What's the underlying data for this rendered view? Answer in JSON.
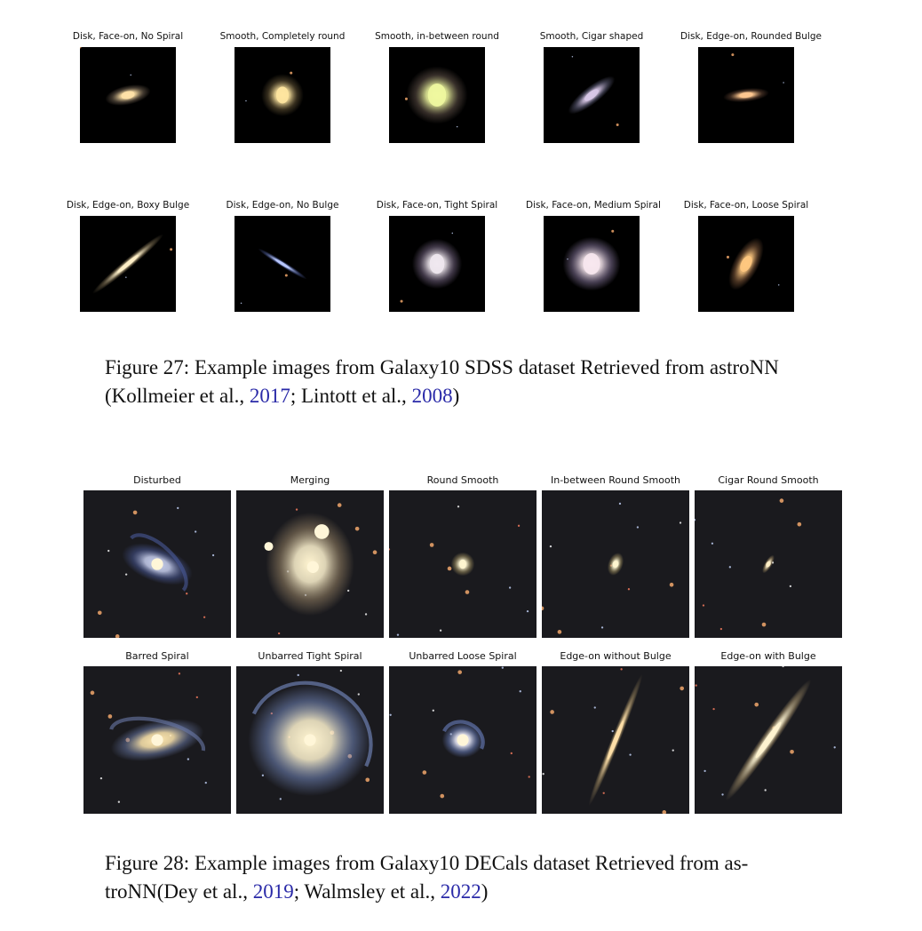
{
  "figure27": {
    "tiles": [
      {
        "label": "Disk, Face-on, No Spiral",
        "galaxy": {
          "kind": "ellipse",
          "rx": 0.24,
          "ry": 0.1,
          "rot": -12,
          "core": "#ffe2a8",
          "halo": "#7a6a58"
        }
      },
      {
        "label": "Smooth, Completely round",
        "galaxy": {
          "kind": "round",
          "rx": 0.22,
          "ry": 0.22,
          "rot": 0,
          "core": "#ffe6a0",
          "halo": "#6a5a3a"
        }
      },
      {
        "label": "Smooth, in-between round",
        "galaxy": {
          "kind": "round",
          "rx": 0.32,
          "ry": 0.3,
          "rot": 0,
          "core": "#f0f8a0",
          "halo": "#6a5a50"
        }
      },
      {
        "label": "Smooth, Cigar shaped",
        "galaxy": {
          "kind": "ellipse",
          "rx": 0.3,
          "ry": 0.09,
          "rot": -38,
          "core": "#d8c8e8",
          "halo": "#6a6a88"
        }
      },
      {
        "label": "Disk, Edge-on, Rounded Bulge",
        "galaxy": {
          "kind": "ellipse",
          "rx": 0.24,
          "ry": 0.07,
          "rot": -6,
          "core": "#ffc890",
          "halo": "#6a4a38"
        }
      },
      {
        "label": "Disk, Edge-on, Boxy Bulge",
        "galaxy": {
          "kind": "edge",
          "rx": 0.48,
          "ry": 0.05,
          "rot": -40,
          "core": "#fff0c8",
          "halo": "#8a7a5a"
        }
      },
      {
        "label": "Disk, Edge-on, No Bulge",
        "galaxy": {
          "kind": "edge",
          "rx": 0.3,
          "ry": 0.03,
          "rot": 32,
          "core": "#b8c8ff",
          "halo": "#5060a0"
        }
      },
      {
        "label": "Disk, Face-on, Tight Spiral",
        "galaxy": {
          "kind": "round",
          "rx": 0.26,
          "ry": 0.26,
          "rot": 0,
          "core": "#f0e8f0",
          "halo": "#7a6a88"
        }
      },
      {
        "label": "Disk, Face-on, Medium Spiral",
        "galaxy": {
          "kind": "round",
          "rx": 0.3,
          "ry": 0.28,
          "rot": 0,
          "core": "#f8e8f0",
          "halo": "#8a7aa0"
        }
      },
      {
        "label": "Disk, Face-on, Loose Spiral",
        "galaxy": {
          "kind": "ellipse",
          "rx": 0.3,
          "ry": 0.13,
          "rot": -62,
          "core": "#ffc880",
          "halo": "#8a6040"
        }
      }
    ]
  },
  "caption27": {
    "line1": "Figure 27: Example images from Galaxy10 SDSS dataset Retrieved from astroNN",
    "line2_pre": "(Kollmeier et al., ",
    "year1": "2017",
    "mid": "; Lintott et al., ",
    "year2": "2008",
    "post": ")"
  },
  "figure28": {
    "tiles": [
      {
        "label": "Disturbed",
        "galaxy": {
          "kind": "spiral",
          "rx": 0.25,
          "ry": 0.12,
          "rot": 20,
          "core": "#c8d0f0",
          "halo": "#4a5a9a"
        }
      },
      {
        "label": "Merging",
        "galaxy": {
          "kind": "merge",
          "rx": 0.3,
          "ry": 0.35,
          "rot": 0,
          "core": "#fff4d0",
          "halo": "#a08a6a"
        }
      },
      {
        "label": "Round Smooth",
        "galaxy": {
          "kind": "round",
          "rx": 0.08,
          "ry": 0.08,
          "rot": 0,
          "core": "#fff6d0",
          "halo": "#a09060"
        }
      },
      {
        "label": "In-between Round Smooth",
        "galaxy": {
          "kind": "ellipse",
          "rx": 0.08,
          "ry": 0.05,
          "rot": -70,
          "core": "#fff6d0",
          "halo": "#a09060"
        }
      },
      {
        "label": "Cigar Round Smooth",
        "galaxy": {
          "kind": "ellipse",
          "rx": 0.07,
          "ry": 0.025,
          "rot": -60,
          "core": "#fff0c8",
          "halo": "#a08a60"
        }
      },
      {
        "label": "Barred Spiral",
        "galaxy": {
          "kind": "spiral",
          "rx": 0.32,
          "ry": 0.13,
          "rot": -12,
          "core": "#ffe8b0",
          "halo": "#6a7aa8"
        }
      },
      {
        "label": "Unbarred Tight Spiral",
        "galaxy": {
          "kind": "spiral",
          "rx": 0.42,
          "ry": 0.38,
          "rot": 0,
          "core": "#fff4d0",
          "halo": "#7a90c8"
        }
      },
      {
        "label": "Unbarred Loose Spiral",
        "galaxy": {
          "kind": "spiral",
          "rx": 0.14,
          "ry": 0.12,
          "rot": 0,
          "core": "#f0f0ff",
          "halo": "#6a80c0"
        }
      },
      {
        "label": "Edge-on without Bulge",
        "galaxy": {
          "kind": "edge",
          "rx": 0.48,
          "ry": 0.03,
          "rot": -68,
          "core": "#ffe0a8",
          "halo": "#a08a60"
        }
      },
      {
        "label": "Edge-on with Bulge",
        "galaxy": {
          "kind": "edge",
          "rx": 0.5,
          "ry": 0.05,
          "rot": -55,
          "core": "#fff4d0",
          "halo": "#b09a70"
        }
      }
    ]
  },
  "caption28": {
    "line1": "Figure 28: Example images from Galaxy10 DECals dataset Retrieved from as-",
    "line2_pre": "troNN(Dey et al., ",
    "year1": "2019",
    "mid": "; Walmsley et al., ",
    "year2": "2022",
    "post": ")"
  },
  "colors": {
    "link": "#2a2aa8",
    "text": "#111111"
  }
}
